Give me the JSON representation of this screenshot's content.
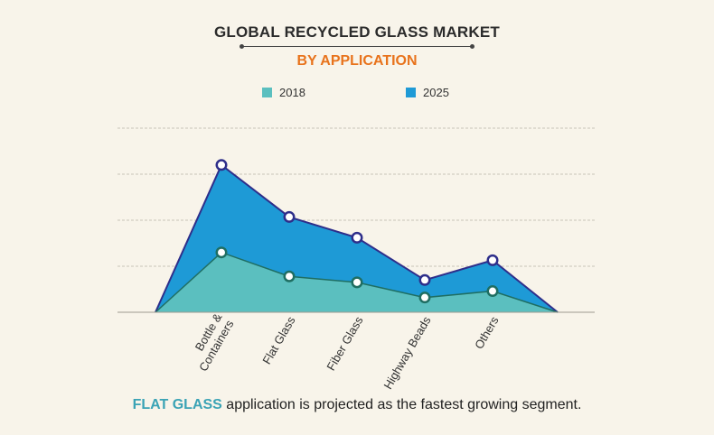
{
  "header": {
    "title": "GLOBAL RECYCLED GLASS MARKET",
    "subtitle": "BY APPLICATION"
  },
  "colors": {
    "series_2018": "#5bbfbf",
    "series_2025": "#1e9ad6",
    "line_2025": "#2e2e8a",
    "line_2018": "#1f6e62",
    "subtitle": "#e8731c",
    "highlight": "#3aa3b5",
    "background": "#f8f4ea"
  },
  "footnote": {
    "highlight": "FLAT GLASS",
    "text": " application is projected as the fastest growing segment."
  },
  "chart_data": {
    "type": "area",
    "categories": [
      "Bottle & Containers",
      "Flat Glass",
      "Fiber Glass",
      "Highway Beads",
      "Others"
    ],
    "series": [
      {
        "name": "2018",
        "values": [
          1.3,
          0.78,
          0.65,
          0.32,
          0.46
        ]
      },
      {
        "name": "2025",
        "values": [
          3.2,
          2.07,
          1.62,
          0.7,
          1.13
        ]
      }
    ],
    "x_endpoints_value": 0,
    "ylim": [
      0,
      4
    ],
    "y_gridlines": [
      1,
      2,
      3,
      4
    ],
    "grid": true,
    "legend_position": "top"
  }
}
